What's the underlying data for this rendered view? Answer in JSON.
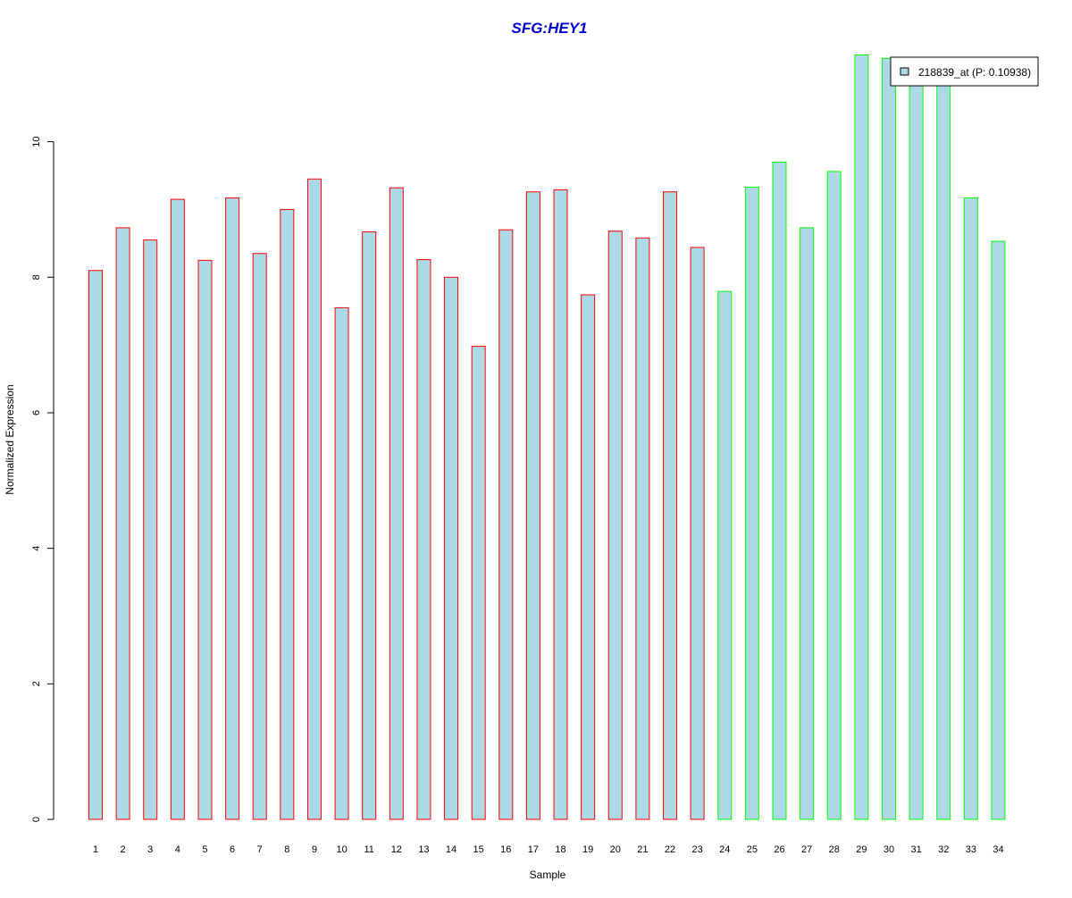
{
  "chart_data": {
    "type": "bar",
    "title": "SFG:HEY1",
    "xlabel": "Sample",
    "ylabel": "Normalized Expression",
    "ylim": [
      0,
      11.3
    ],
    "yticks": [
      0,
      2,
      4,
      6,
      8,
      10
    ],
    "grid": false,
    "legend_position": "top-right",
    "categories": [
      "1",
      "2",
      "3",
      "4",
      "5",
      "6",
      "7",
      "8",
      "9",
      "10",
      "11",
      "12",
      "13",
      "14",
      "15",
      "16",
      "17",
      "18",
      "19",
      "20",
      "21",
      "22",
      "23",
      "24",
      "25",
      "26",
      "27",
      "28",
      "29",
      "30",
      "31",
      "32",
      "33",
      "34"
    ],
    "series": [
      {
        "name": "218839_at (P: 0.10938)",
        "values": [
          8.1,
          8.73,
          8.55,
          9.15,
          8.25,
          9.17,
          8.35,
          9.0,
          9.45,
          7.55,
          8.67,
          9.32,
          8.26,
          8.0,
          6.98,
          8.7,
          9.26,
          9.29,
          7.74,
          8.68,
          8.58,
          9.26,
          8.44,
          7.79,
          9.33,
          9.7,
          8.73,
          9.56,
          11.28,
          11.23,
          10.97,
          10.92,
          9.17,
          8.53
        ]
      }
    ],
    "groups": [
      {
        "samples": [
          1,
          23
        ],
        "border_color": "#ff0000"
      },
      {
        "samples": [
          24,
          34
        ],
        "border_color": "#00ff00"
      }
    ],
    "colors": {
      "bar_fill": "#add8e6",
      "title": "#0000cd",
      "axis": "#000000",
      "legend_swatch": "#add8e6"
    }
  }
}
